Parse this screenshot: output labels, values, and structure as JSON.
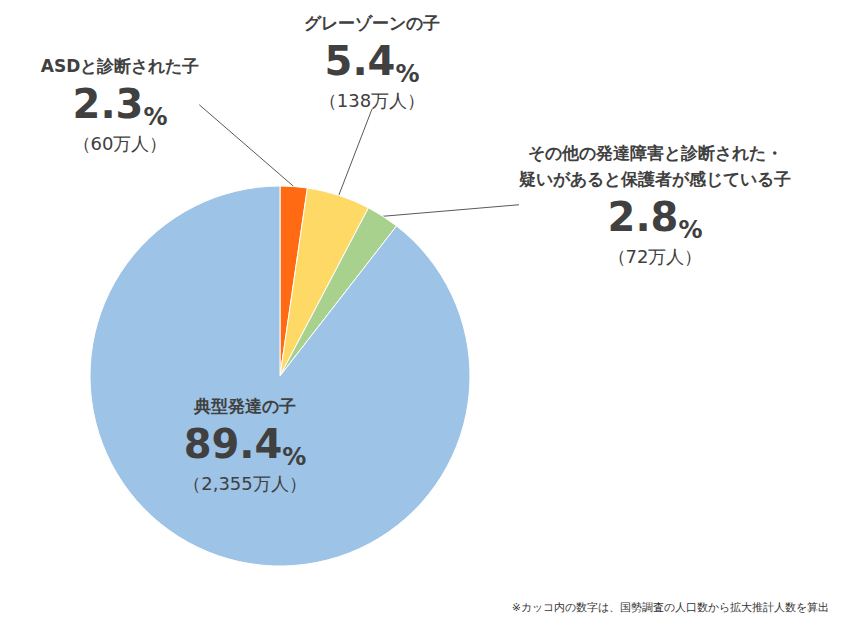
{
  "chart_data": {
    "type": "pie",
    "categories": [
      "ASDと診断された子",
      "グレーゾーンの子",
      "その他の発達障害と診断された・\n疑いがあると保護者が感じている子",
      "典型発達の子"
    ],
    "values": [
      2.3,
      5.4,
      2.8,
      89.4
    ],
    "value_labels": [
      "2.3%",
      "5.4%",
      "2.8%",
      "89.4%"
    ],
    "count_labels": [
      "（60万人）",
      "（138万人）",
      "（72万人）",
      "（2,355万人）"
    ],
    "colors": [
      "#FF6A13",
      "#FFD966",
      "#A9D18E",
      "#9DC3E6"
    ],
    "note": "※カッコ内の数字は、国勢調査の人口数から拡大推計人数を算出"
  }
}
